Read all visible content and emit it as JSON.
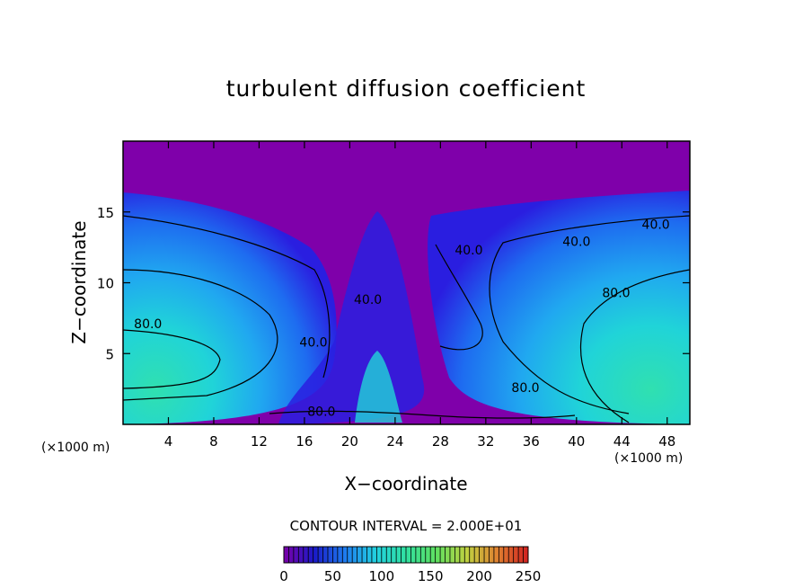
{
  "chart_data": {
    "type": "heatmap",
    "title": "turbulent diffusion coefficient",
    "xlabel": "X−coordinate",
    "ylabel": "Z−coordinate",
    "x_unit_left": "(×1000 m)",
    "x_unit_right": "(×1000 m)",
    "xlim": [
      0,
      50
    ],
    "ylim": [
      0,
      20
    ],
    "x_ticks": [
      4,
      8,
      12,
      16,
      20,
      24,
      28,
      32,
      36,
      40,
      44,
      48
    ],
    "x_tick_labels": [
      "4",
      "8",
      "12",
      "16",
      "20",
      "24",
      "28",
      "32",
      "36",
      "40",
      "44",
      "48"
    ],
    "y_ticks": [
      5,
      10,
      15
    ],
    "y_tick_labels": [
      "5",
      "10",
      "15"
    ],
    "contour_labels": [
      {
        "text": "80.0",
        "x": 2.2,
        "y": 6.8
      },
      {
        "text": "40.0",
        "x": 16.8,
        "y": 5.5
      },
      {
        "text": "80.0",
        "x": 17.5,
        "y": 0.6
      },
      {
        "text": "40.0",
        "x": 21.6,
        "y": 8.5
      },
      {
        "text": "40.0",
        "x": 30.5,
        "y": 12.0
      },
      {
        "text": "40.0",
        "x": 40.0,
        "y": 12.6
      },
      {
        "text": "40.0",
        "x": 47.0,
        "y": 13.8
      },
      {
        "text": "80.0",
        "x": 43.5,
        "y": 9.0
      },
      {
        "text": "80.0",
        "x": 35.5,
        "y": 2.3
      }
    ],
    "contour_interval_text": "CONTOUR INTERVAL = 2.000E+01",
    "colorbar": {
      "min": 0,
      "max": 250,
      "ticks": [
        0,
        50,
        100,
        150,
        200,
        250
      ],
      "tick_labels": [
        "0",
        "50",
        "100",
        "150",
        "200",
        "250"
      ],
      "colors": [
        "#7a00a8",
        "#1a1ac8",
        "#1e7cf0",
        "#22d0e0",
        "#30e0a0",
        "#60e060",
        "#c0d040",
        "#e08030",
        "#d02020"
      ]
    },
    "field_colors": {
      "background_purple": "#7f00aa",
      "deep_blue": "#2a1ee0",
      "mid_blue": "#1e6cf0",
      "light_blue": "#20a8f0",
      "cyan": "#20d4d8",
      "aqua_green": "#30e0b0"
    }
  }
}
